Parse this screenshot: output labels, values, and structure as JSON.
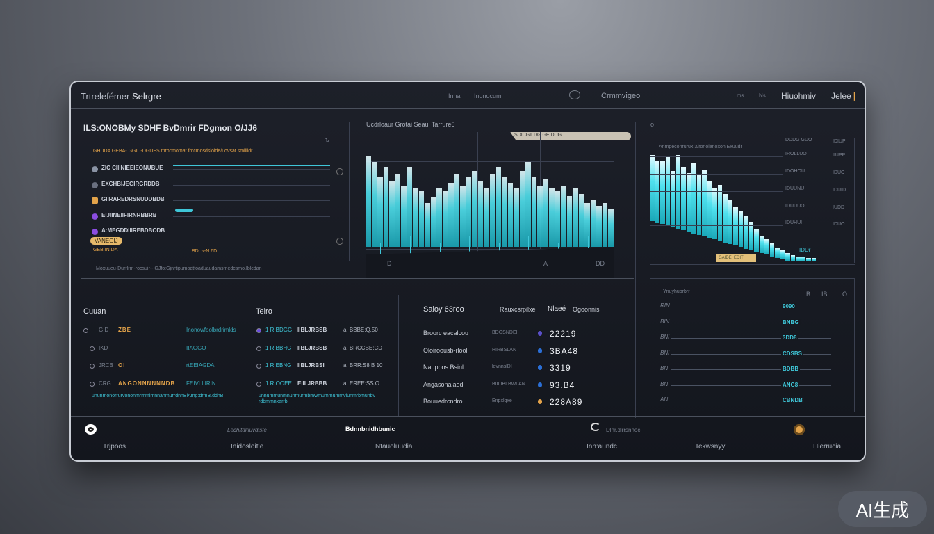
{
  "header": {
    "brand": "Trtrelefémer",
    "brand_sub": "Selrgre",
    "nav": [
      "Inna",
      "Inonocum"
    ],
    "center_label": "Crmmvigeo",
    "right_small": [
      "ms",
      "Ns"
    ],
    "right_label": "Hiuohmiv",
    "right_action": "Jelee"
  },
  "left_panel": {
    "title": "ILS:ONOBMy SDHF BvDmrir FDgmon O/JJ6",
    "corner": "ъ",
    "legend_note": "GHUDA GEBA- GGID-DGDES mrocmomat fo:cmosdsiolde/Lovsat smlilidr",
    "rows": [
      {
        "label": "ZIC CIIINIEEIEONUBUE",
        "color": "#8a93a4"
      },
      {
        "label": "EXCHBIJEGIRGRDDB",
        "color": "#6a7080"
      },
      {
        "label": "GIIRAREDRSNUDDBDB",
        "color": "#e3a34a"
      },
      {
        "label": "EIJIINEIIFIRNRBBRB",
        "color": "#8b4de0"
      },
      {
        "label": "A:MEGDDIIIREBDBODB",
        "color": "#8b4de0"
      }
    ],
    "badge": "VANEGIJ",
    "badge_sub": "GEBIINIDA",
    "marker": "BDL-/-N:6D",
    "footer": "Moxuueu-Durrlrm-rocsuir-- GJfo:Gjnrtipumoatfoaduaudamsmedcsmo.Iblcdan"
  },
  "mid_chart": {
    "title": "Ucdrloaur Grotai Seaui Tarrure6",
    "tooltip": "SDICGILDG GEIDUG",
    "x_ticks": [
      "D",
      "A",
      "DD"
    ],
    "values": [
      62,
      58,
      48,
      55,
      45,
      50,
      42,
      55,
      40,
      38,
      30,
      34,
      40,
      38,
      44,
      50,
      42,
      48,
      52,
      45,
      40,
      50,
      55,
      48,
      44,
      40,
      52,
      58,
      48,
      42,
      46,
      40,
      38,
      42,
      35,
      40,
      36,
      30,
      32,
      28,
      30,
      26
    ]
  },
  "right_chart": {
    "corner": "o",
    "title": "Anmpeconrurux 3/ronolenoxon Exuudr",
    "y_labels_left": [
      "DDDG GUO",
      "IROLLUO",
      "IDOHOU",
      "IDUUNU",
      "IDUUUO",
      "IDUHUI"
    ],
    "y_labels_right": [
      "IDIUP",
      "IIUPP",
      "IDUO",
      "IDUID",
      "IUDD",
      "IDUO"
    ],
    "tag": "GAIDEI EDIT",
    "small_value": "IDDr",
    "values": [
      52,
      48,
      50,
      55,
      44,
      58,
      50,
      46,
      55,
      48,
      52,
      45,
      40,
      44,
      38,
      35,
      30,
      28,
      26,
      22,
      18,
      14,
      12,
      10,
      8,
      7,
      6,
      5,
      4,
      4,
      3,
      3
    ]
  },
  "contacts": {
    "title": "Cuuan",
    "rows": [
      {
        "a": "GID",
        "b": "ZBE",
        "c": "Inonowfoolbrdrimlds"
      },
      {
        "a": "IKD",
        "b": "",
        "c": "IIAGGO"
      },
      {
        "a": "JRCB",
        "b": "OI",
        "c": "rtEEIAGDA"
      },
      {
        "a": "CRG",
        "b": "ANGONNNNNNDB",
        "c": "FEIVLLIRIN"
      }
    ],
    "note": "ununmonorrurvononmrmmimnnanmurrdnnBlAmg:drmB.ddnB"
  },
  "terro": {
    "title": "Teiro",
    "rows": [
      {
        "a": "1 R BDGG",
        "b": "IIBLJRBSB",
        "c": "a. BBBE:Q.50"
      },
      {
        "a": "1 R BBHG",
        "b": "IIBLJRBSB",
        "c": "a. BRCCBE:CD"
      },
      {
        "a": "1 R EBNG",
        "b": "IIBLJRBSI",
        "c": "a. BRR:S8 B 10"
      },
      {
        "a": "1 R OOEE",
        "b": "EIILJRBBB",
        "c": "a. EREE:SS.O"
      }
    ],
    "note": "unnummunmnunmurmbmwmummummvlunmrbmunbvrdbmmnxarrb"
  },
  "table": {
    "title": "Saloy 63roo",
    "cols": [
      "Rauxcsrpilxe",
      "Nlaeé",
      "Ogoonnis"
    ],
    "rows": [
      {
        "name": "Broorc eacalcou",
        "sub": "BDGSNDEI",
        "icon": "#5a4fc8",
        "val": "22219"
      },
      {
        "name": "Oloiroousb-rlool",
        "sub": "HIRBSLAN",
        "icon": "#2b6fd6",
        "val": "3BA48"
      },
      {
        "name": "Naupbos Bsinl",
        "sub": "lovnnslDI",
        "icon": "#2b6fd6",
        "val": "3319"
      },
      {
        "name": "Angasonalaodi",
        "sub": "BIILIBLBWLAN",
        "icon": "#2b6fd6",
        "val": "93.B4"
      },
      {
        "name": "Bouuedrcndro",
        "sub": "Enpxlqxe",
        "icon": "#e3a34a",
        "val": "228A89"
      }
    ]
  },
  "right_list": {
    "head": [
      "Ynuyhuorbrr",
      "B",
      "IB",
      "O"
    ],
    "rows": [
      {
        "l": "RIN",
        "v": "9090"
      },
      {
        "l": "BIN",
        "v": "BNBG"
      },
      {
        "l": "BNI",
        "v": "3DD8"
      },
      {
        "l": "BNI",
        "v": "CDSBS"
      },
      {
        "l": "BN",
        "v": "BDBB"
      },
      {
        "l": "BN",
        "v": "ANG8"
      },
      {
        "l": "AN",
        "v": "CBNDB"
      }
    ]
  },
  "footer": {
    "items": [
      "Trjpoos",
      "Inidosloitie",
      "Ntauoluudia",
      "Inn:aundc",
      "Tekwsnyy",
      "Hierrucia"
    ],
    "titles": [
      "Lechitakiuvdiste",
      "Bdnnbnidhbunic",
      "Dlnr.dlrrsnnoc"
    ]
  },
  "watermark": "AI生成",
  "colors": {
    "accent": "#3fc6d8",
    "warning": "#e3a34a",
    "purple": "#8b4de0",
    "panel": "#161920"
  }
}
